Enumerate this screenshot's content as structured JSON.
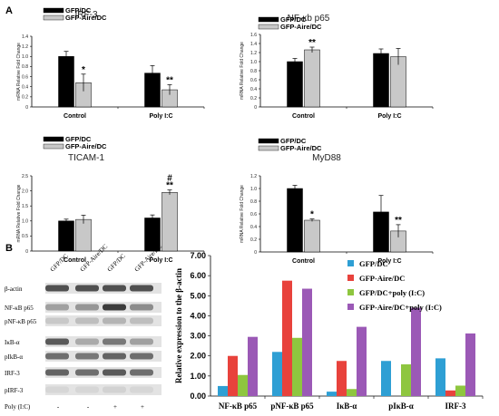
{
  "panel_labels": {
    "a": "A",
    "b": "B"
  },
  "chart_data": [
    {
      "type": "bar",
      "title": "IRF-3",
      "ylabel": "mRNA Relative Fold Change",
      "ylim": [
        0,
        1.4
      ],
      "yticks": [
        "0",
        "0.2",
        "0.4",
        "0.6",
        "0.8",
        "1.0",
        "1.2",
        "1.4"
      ],
      "categories": [
        "Control",
        "Poly I:C"
      ],
      "series": [
        {
          "name": "GFP/DC",
          "color": "#000000",
          "values": [
            1.0,
            0.67
          ],
          "errors": [
            0.1,
            0.15
          ]
        },
        {
          "name": "GFP-Aire/DC",
          "color": "#c8c8c8",
          "values": [
            0.48,
            0.34
          ],
          "errors": [
            0.17,
            0.1
          ]
        }
      ],
      "annotations": [
        {
          "cat": 0,
          "series": 1,
          "text": "*"
        },
        {
          "cat": 1,
          "series": 1,
          "text": "**"
        }
      ]
    },
    {
      "type": "bar",
      "title": "NF-κb p65",
      "ylabel": "mRNA Relative Fold Change",
      "ylim": [
        0,
        1.6
      ],
      "yticks": [
        "0",
        "0.2",
        "0.4",
        "0.6",
        "0.8",
        "1.0",
        "1.2",
        "1.4",
        "1.6"
      ],
      "categories": [
        "Control",
        "Poly I:C"
      ],
      "series": [
        {
          "name": "GFP/DC",
          "color": "#000000",
          "values": [
            1.0,
            1.18
          ],
          "errors": [
            0.07,
            0.1
          ]
        },
        {
          "name": "GFP-Aire/DC",
          "color": "#c8c8c8",
          "values": [
            1.26,
            1.11
          ],
          "errors": [
            0.06,
            0.18
          ]
        }
      ],
      "annotations": [
        {
          "cat": 0,
          "series": 1,
          "text": "**"
        }
      ]
    },
    {
      "type": "bar",
      "title": "TICAM-1",
      "ylabel": "mRNA Relative Fold Change",
      "ylim": [
        0,
        2.5
      ],
      "yticks": [
        "0",
        "0.5",
        "1.0",
        "1.5",
        "2.0",
        "2.5"
      ],
      "categories": [
        "Control",
        "Poly I:C"
      ],
      "series": [
        {
          "name": "GFP/DC",
          "color": "#000000",
          "values": [
            1.0,
            1.1
          ],
          "errors": [
            0.06,
            0.1
          ]
        },
        {
          "name": "GFP-Aire/DC",
          "color": "#c8c8c8",
          "values": [
            1.05,
            1.95
          ],
          "errors": [
            0.14,
            0.08
          ]
        }
      ],
      "annotations": [
        {
          "cat": 1,
          "series": 1,
          "text": "**"
        },
        {
          "cat": 1,
          "series": 1,
          "text": "#",
          "level": 2
        }
      ]
    },
    {
      "type": "bar",
      "title": "MyD88",
      "ylabel": "mRNA Relative Fold Change",
      "ylim": [
        0,
        1.2
      ],
      "yticks": [
        "0",
        "0.2",
        "0.4",
        "0.6",
        "0.8",
        "1.0",
        "1.2"
      ],
      "categories": [
        "Control",
        "Poly I:C"
      ],
      "series": [
        {
          "name": "GFP/DC",
          "color": "#000000",
          "values": [
            1.0,
            0.63
          ],
          "errors": [
            0.05,
            0.26
          ]
        },
        {
          "name": "GFP-Aire/DC",
          "color": "#c8c8c8",
          "values": [
            0.5,
            0.33
          ],
          "errors": [
            0.02,
            0.1
          ]
        }
      ],
      "annotations": [
        {
          "cat": 0,
          "series": 1,
          "text": "*"
        },
        {
          "cat": 1,
          "series": 1,
          "text": "**"
        }
      ]
    },
    {
      "type": "bar",
      "title": "",
      "ylabel": "Relative expression to the β-actin",
      "ylim": [
        0,
        7
      ],
      "yticks": [
        "0.00",
        "1.00",
        "2.00",
        "3.00",
        "4.00",
        "5.00",
        "6.00",
        "7.00"
      ],
      "categories": [
        "NF-κB p65",
        "pNF-κB p65",
        "IκB-α",
        "pIκB-α",
        "IRF-3"
      ],
      "series": [
        {
          "name": "GFP/DC",
          "color": "#2e9fd4",
          "values": [
            0.5,
            2.2,
            0.22,
            1.75,
            1.88
          ]
        },
        {
          "name": "GFP-Aire/DC",
          "color": "#e8423c",
          "values": [
            2.0,
            5.75,
            1.75,
            0.0,
            0.28
          ]
        },
        {
          "name": "GFP/DC+poly (I:C)",
          "color": "#8ec63f",
          "values": [
            1.05,
            2.9,
            0.35,
            1.58,
            0.52
          ]
        },
        {
          "name": "GFP-Aire/DC+poly (I:C)",
          "color": "#9b59b6",
          "values": [
            2.95,
            5.35,
            3.45,
            4.4,
            3.12
          ]
        }
      ]
    }
  ],
  "blot": {
    "lane_labels": [
      "GFP/DC",
      "GFP-Aire/DC",
      "GFP/DC",
      "GFP-Aire/DC"
    ],
    "rows": [
      "β-actin",
      "NF-κB p65",
      "pNF-κB p65",
      "IκB-α",
      "pIkB-α",
      "IRF-3",
      "pIRF-3"
    ],
    "poly_label": "Poly (I:C)",
    "poly_signs": [
      "-",
      "-",
      "+",
      "+"
    ]
  }
}
